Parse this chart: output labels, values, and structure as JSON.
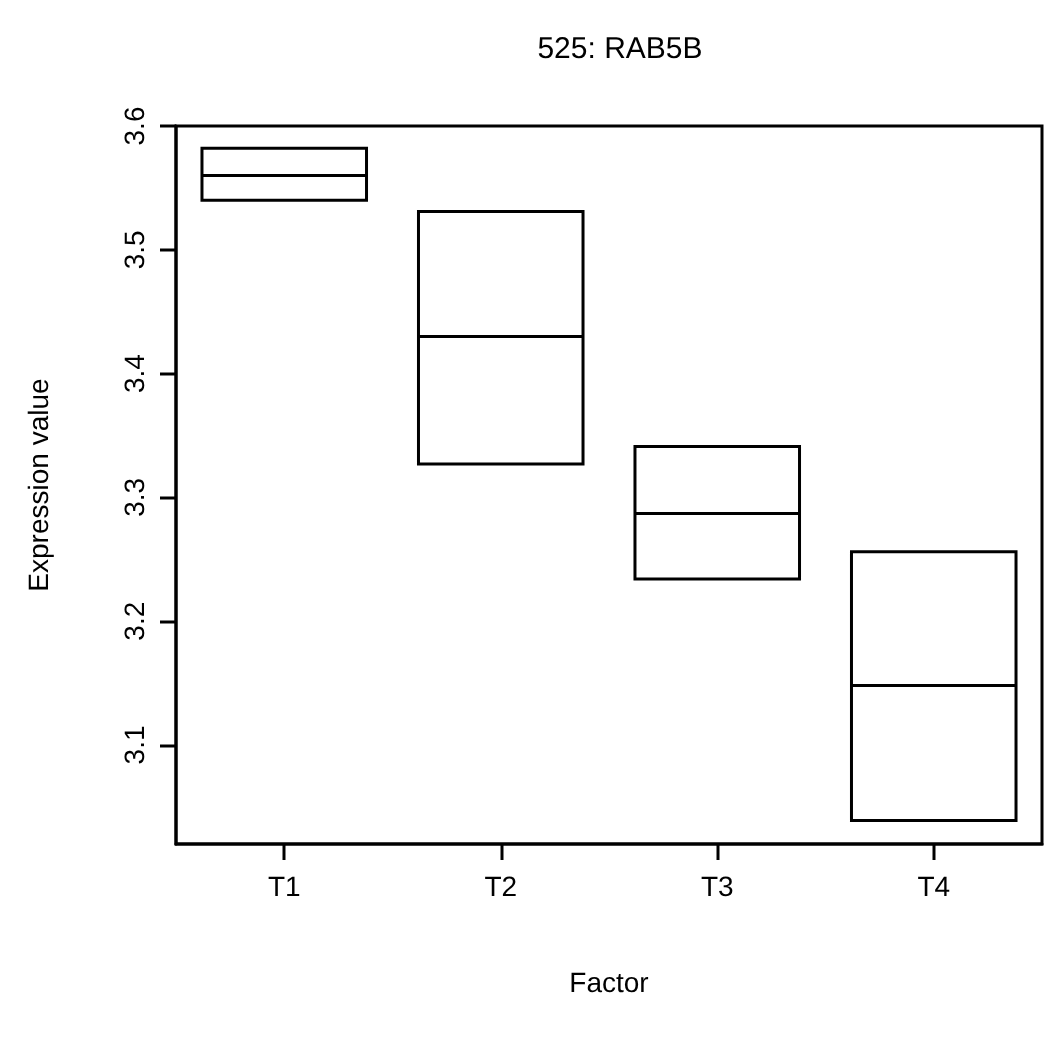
{
  "chart_data": {
    "type": "box",
    "title": "525: RAB5B",
    "xlabel": "Factor",
    "ylabel": "Expression value",
    "categories": [
      "T1",
      "T2",
      "T3",
      "T4"
    ],
    "series": [
      {
        "color": "#000000",
        "boxes": [
          {
            "low": 3.54,
            "q1": 3.54,
            "median": 3.56,
            "q3": 3.582,
            "high": 3.582
          },
          {
            "low": 3.327,
            "q1": 3.327,
            "median": 3.43,
            "q3": 3.531,
            "high": 3.531
          },
          {
            "low": 3.234,
            "q1": 3.234,
            "median": 3.287,
            "q3": 3.341,
            "high": 3.341
          },
          {
            "low": 3.039,
            "q1": 3.039,
            "median": 3.148,
            "q3": 3.256,
            "high": 3.256
          }
        ]
      }
    ],
    "ylim": [
      3.02,
      3.6
    ],
    "yticks": [
      3.1,
      3.2,
      3.3,
      3.4,
      3.5,
      3.6
    ]
  }
}
